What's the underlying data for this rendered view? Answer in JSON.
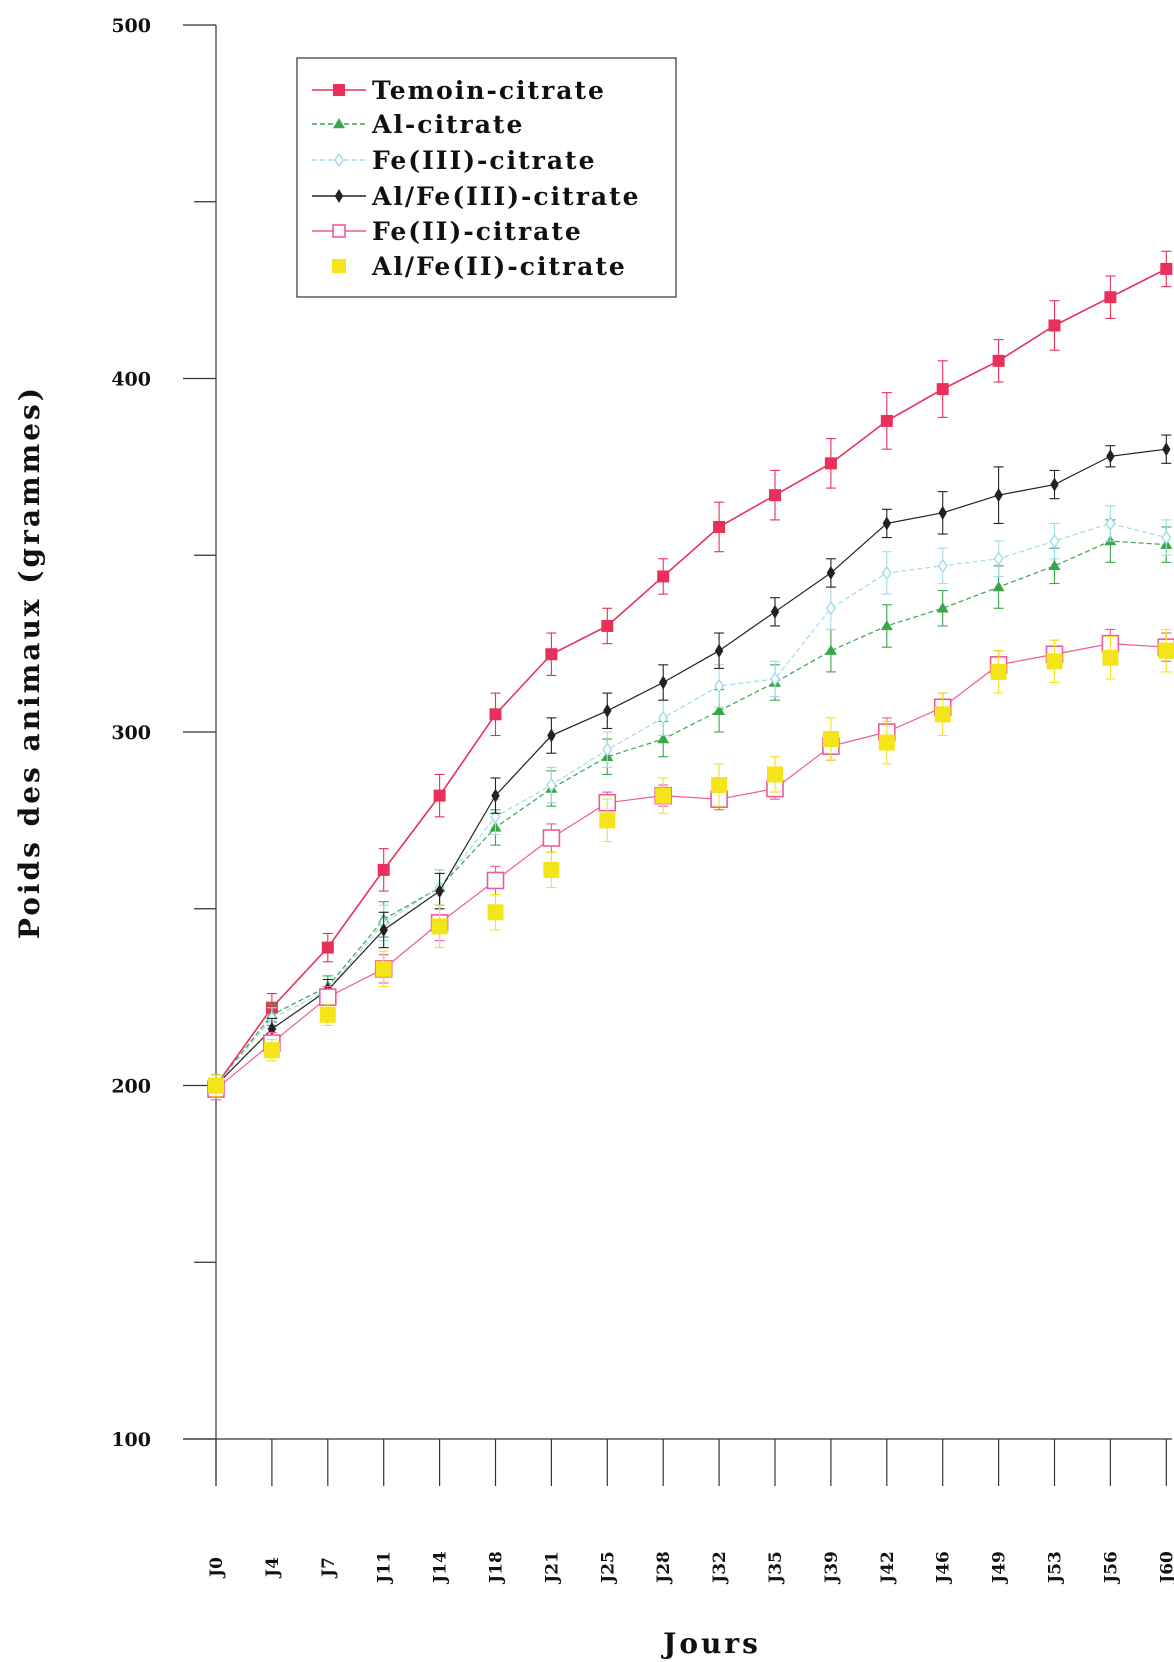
{
  "chart_data": {
    "type": "line",
    "xlabel": "Jours",
    "ylabel": "Poids des animaux (grammes)",
    "ylim": [
      100,
      500
    ],
    "yticks_labeled": [
      100,
      200,
      300,
      400,
      500
    ],
    "yticks_minor": [
      150,
      250,
      350,
      450
    ],
    "categories": [
      "J0",
      "J4",
      "J7",
      "J11",
      "J14",
      "J18",
      "J21",
      "J25",
      "J28",
      "J32",
      "J35",
      "J39",
      "J42",
      "J46",
      "J49",
      "J53",
      "J56",
      "J60"
    ],
    "legend_position": "top-left",
    "grid": false,
    "series": [
      {
        "name": "Temoin-citrate",
        "color": "#e8305a",
        "marker": "square-filled",
        "values": [
          200,
          222,
          239,
          261,
          282,
          305,
          322,
          330,
          344,
          358,
          367,
          376,
          388,
          397,
          405,
          415,
          423,
          431
        ],
        "errors": [
          3,
          4,
          4,
          6,
          6,
          6,
          6,
          5,
          5,
          7,
          7,
          7,
          8,
          8,
          6,
          7,
          6,
          5
        ]
      },
      {
        "name": "Al-citrate",
        "color": "#3aa64a",
        "marker": "triangle-filled",
        "values": [
          200,
          220,
          228,
          247,
          256,
          273,
          284,
          293,
          298,
          306,
          314,
          323,
          330,
          335,
          341,
          347,
          354,
          353
        ],
        "errors": [
          3,
          3,
          3,
          5,
          5,
          5,
          5,
          5,
          5,
          6,
          5,
          6,
          6,
          5,
          6,
          5,
          6,
          5
        ]
      },
      {
        "name": "Fe(III)-citrate",
        "color": "#9fdde6",
        "marker": "diamond-open",
        "values": [
          200,
          219,
          227,
          246,
          256,
          276,
          285,
          295,
          304,
          313,
          315,
          335,
          345,
          347,
          349,
          354,
          359,
          355
        ],
        "errors": [
          3,
          3,
          3,
          5,
          5,
          5,
          5,
          5,
          5,
          6,
          5,
          6,
          6,
          5,
          5,
          5,
          5,
          5
        ]
      },
      {
        "name": "Al/Fe(III)-citrate",
        "color": "#222222",
        "marker": "diamond-filled",
        "values": [
          200,
          216,
          227,
          244,
          255,
          282,
          299,
          306,
          314,
          323,
          334,
          345,
          359,
          362,
          367,
          370,
          378,
          380
        ],
        "errors": [
          3,
          3,
          3,
          5,
          5,
          5,
          5,
          5,
          5,
          5,
          4,
          4,
          4,
          6,
          8,
          4,
          3,
          4
        ]
      },
      {
        "name": "Fe(II)-citrate",
        "color": "#ee5b9a",
        "marker": "square-open",
        "values": [
          199,
          212,
          225,
          233,
          246,
          258,
          270,
          280,
          282,
          281,
          284,
          296,
          300,
          307,
          319,
          322,
          325,
          324
        ],
        "errors": [
          3,
          3,
          3,
          4,
          5,
          4,
          4,
          3,
          3,
          3,
          3,
          4,
          4,
          4,
          4,
          4,
          4,
          4
        ]
      },
      {
        "name": "Al/Fe(II)-citrate",
        "color": "#f4e41a",
        "marker": "square-filled",
        "values": [
          200,
          210,
          220,
          233,
          245,
          249,
          261,
          275,
          282,
          285,
          288,
          298,
          297,
          305,
          317,
          320,
          321,
          323
        ],
        "errors": [
          3,
          3,
          3,
          5,
          6,
          5,
          5,
          6,
          5,
          6,
          5,
          6,
          6,
          6,
          6,
          6,
          6,
          6
        ]
      }
    ]
  }
}
